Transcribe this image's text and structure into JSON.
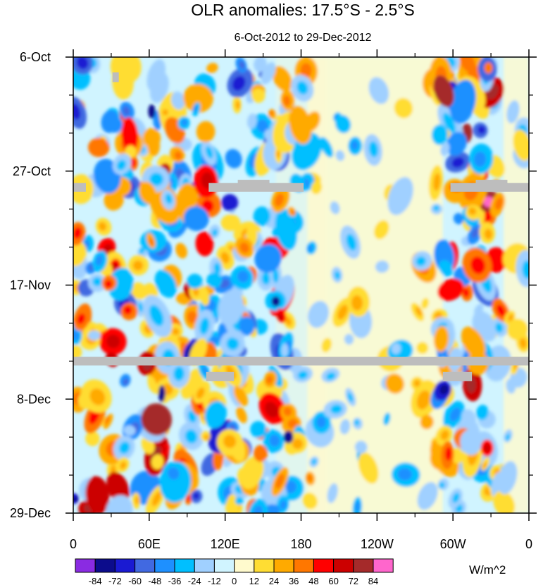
{
  "chart_data": {
    "type": "heatmap",
    "title": "OLR anomalies: 17.5°S - 2.5°S",
    "subtitle": "6-Oct-2012 to 29-Dec-2012",
    "x_tick_labels": [
      "0",
      "60E",
      "120E",
      "180",
      "120W",
      "60W",
      "0"
    ],
    "x_tick_degrees_east": [
      0,
      60,
      120,
      180,
      240,
      300,
      360
    ],
    "x_range_degrees_east": [
      0,
      360
    ],
    "y_tick_labels": [
      "6-Oct",
      "27-Oct",
      "17-Nov",
      "8-Dec",
      "29-Dec"
    ],
    "y_tick_day_offsets": [
      0,
      21,
      42,
      63,
      84
    ],
    "y_range_day_offsets": [
      0,
      84
    ],
    "units": "W/m^2",
    "colorbar": {
      "levels": [
        "-84",
        "-72",
        "-60",
        "-48",
        "-36",
        "-24",
        "-12",
        "0",
        "12",
        "24",
        "36",
        "48",
        "60",
        "72",
        "84"
      ],
      "colors": [
        "#8a2be2",
        "#0c0c8c",
        "#1a1ad2",
        "#4169e1",
        "#1e90ff",
        "#00bfff",
        "#a0d0ff",
        "#d0f4ff",
        "#fffacd",
        "#ffdd33",
        "#ffaa00",
        "#ff7700",
        "#ff0000",
        "#cc0000",
        "#a52a2a",
        "#ff66cc"
      ]
    },
    "missing_data_color": "#bdbdbd",
    "missing_data": [
      {
        "lon_start": 0,
        "lon_end": 360,
        "day_start": 55.2,
        "day_end": 56.8
      },
      {
        "lon_start": 0,
        "lon_end": 10,
        "day_start": 23.2,
        "day_end": 24.8
      },
      {
        "lon_start": 107,
        "lon_end": 182,
        "day_start": 23.2,
        "day_end": 24.8
      },
      {
        "lon_start": 130,
        "lon_end": 155,
        "day_start": 22.6,
        "day_end": 23.4
      },
      {
        "lon_start": 298,
        "lon_end": 360,
        "day_start": 23.2,
        "day_end": 24.8
      },
      {
        "lon_start": 318,
        "lon_end": 343,
        "day_start": 22.6,
        "day_end": 23.4
      },
      {
        "lon_start": 105,
        "lon_end": 127,
        "day_start": 58.0,
        "day_end": 59.7
      },
      {
        "lon_start": 292,
        "lon_end": 315,
        "day_start": 58.0,
        "day_end": 59.7
      },
      {
        "lon_start": 31,
        "lon_end": 36,
        "day_start": 2.8,
        "day_end": 4.6
      }
    ]
  }
}
